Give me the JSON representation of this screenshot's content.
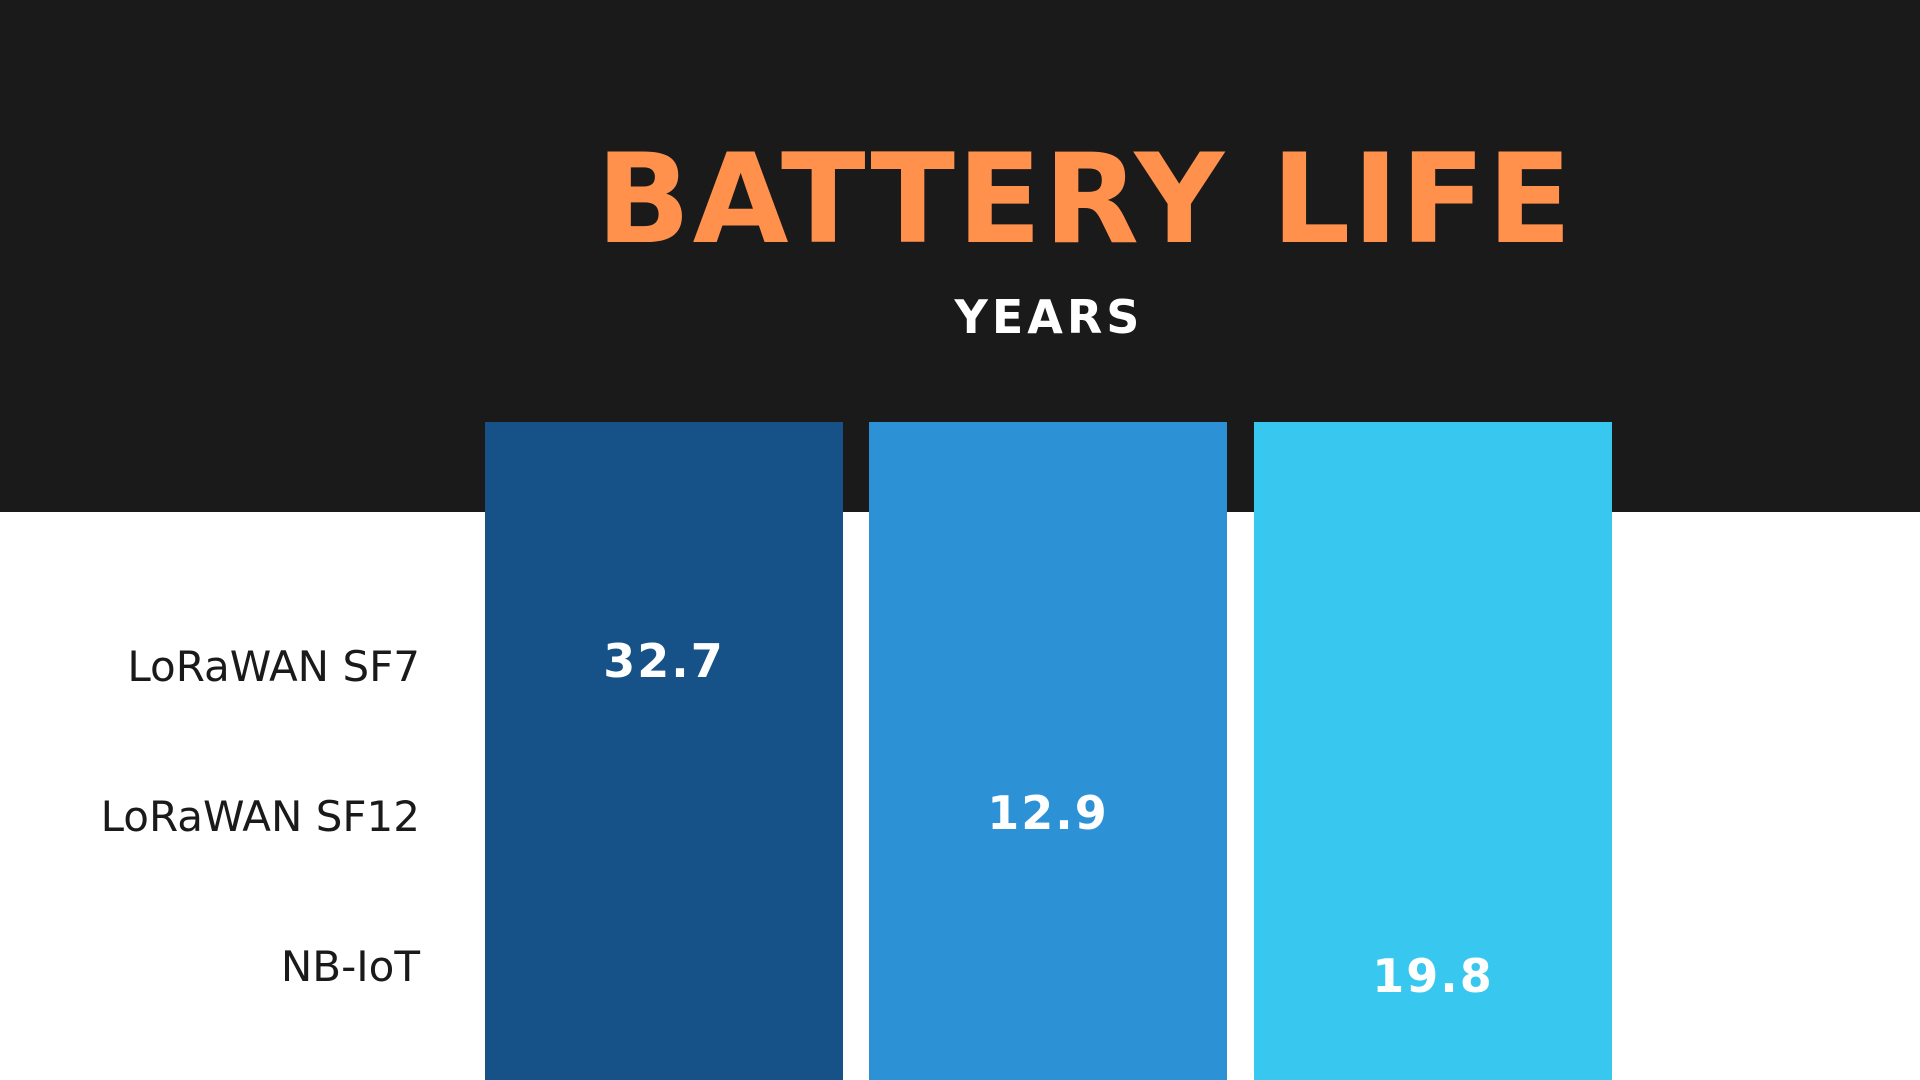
{
  "header": {
    "title": "BATTERY LIFE",
    "subtitle": "YEARS"
  },
  "items": [
    {
      "label": "LoRaWAN SF7",
      "value": "32.7"
    },
    {
      "label": "LoRaWAN SF12",
      "value": "12.9"
    },
    {
      "label": "NB-IoT",
      "value": "19.8"
    }
  ]
}
